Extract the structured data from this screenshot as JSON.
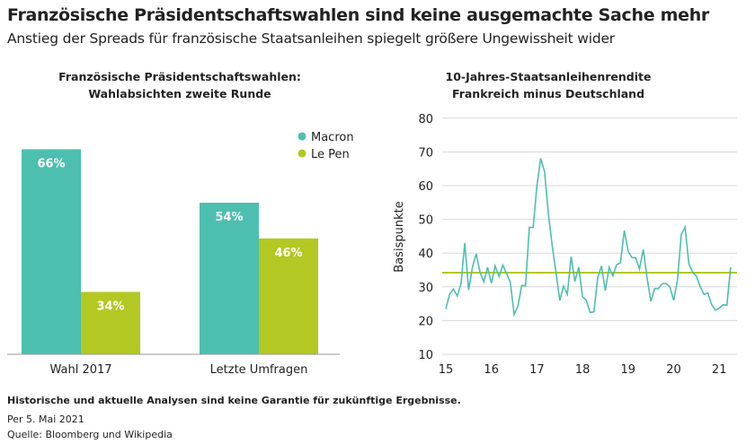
{
  "title": "Französische Präsidentschaftswahlen sind keine ausgemachte Sache mehr",
  "subtitle": "Anstieg der Spreads für französische Staatsanleihen spiegelt größere Ungewissheit wider",
  "footer": {
    "disclaimer": "Historische und aktuelle Analysen sind keine Garantie für zukünftige Ergebnisse.",
    "date": "Per 5. Mai 2021",
    "source": "Quelle: Bloomberg und Wikipedia"
  },
  "colors": {
    "macron": "#4dbfb0",
    "lepen": "#b3c823",
    "grid": "#d9d9d9"
  },
  "chart_data": [
    {
      "type": "bar",
      "title_line1": "Französische Präsidentschaftswahlen:",
      "title_line2": "Wahlabsichten zweite Runde",
      "categories": [
        "Wahl 2017",
        "Letzte Umfragen"
      ],
      "series": [
        {
          "name": "Macron",
          "values": [
            66,
            54
          ],
          "labels": [
            "66%",
            "54%"
          ]
        },
        {
          "name": "Le Pen",
          "values": [
            34,
            46
          ],
          "labels": [
            "34%",
            "46%"
          ]
        }
      ],
      "legend": "top-right"
    },
    {
      "type": "line",
      "title_line1": "10-Jahres-Staatsanleihenrendite",
      "title_line2": "Frankreich minus Deutschland",
      "ylabel": "Basispunkte",
      "ylim": [
        10,
        80
      ],
      "yticks": [
        "10",
        "20",
        "30",
        "40",
        "50",
        "60",
        "70",
        "80"
      ],
      "xlim": [
        15,
        21.33
      ],
      "xticks": [
        "15",
        "16",
        "17",
        "18",
        "19",
        "20",
        "21"
      ],
      "x_start": 15,
      "x_step_months": 1,
      "reference_line": 34.2,
      "values": [
        23.4,
        27.8,
        29.4,
        27.3,
        30.9,
        43,
        29.1,
        35.8,
        39.8,
        34.4,
        31.5,
        35.8,
        31.1,
        36.2,
        33.1,
        36.4,
        34,
        31.3,
        21.8,
        24.4,
        30.4,
        30.3,
        47.6,
        47.6,
        60.1,
        68.1,
        64.1,
        51.7,
        42.4,
        34.4,
        26,
        30.2,
        27.8,
        39,
        31.6,
        35.8,
        27.1,
        26,
        22.4,
        22.6,
        32.7,
        36.2,
        28.9,
        35.8,
        33.3,
        36.6,
        37.1,
        46.7,
        40.6,
        38.7,
        38.6,
        35.3,
        41.1,
        32.7,
        25.7,
        29.5,
        29.5,
        31,
        31,
        30,
        26,
        31.9,
        45.5,
        47.7,
        36.8,
        34.4,
        33.1,
        30,
        27.8,
        28.2,
        24.7,
        23.1,
        23.7,
        24.7,
        24.6,
        35.8
      ]
    }
  ]
}
